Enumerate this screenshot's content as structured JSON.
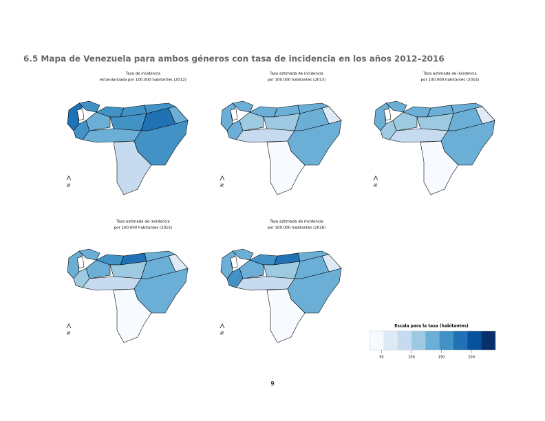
{
  "section_title": "6.5 Mapa de Venezuela para ambos géneros con tasa de incidencia en los años 2012–2016",
  "maps": [
    {
      "title_line1": "Tasa de incidencia",
      "title_line2": "estandarizada por 100.000 habitantes (2012)",
      "north": "N"
    },
    {
      "title_line1": "Tasa estimada de incidencia",
      "title_line2": "por 100.000 habitantes (2013)",
      "north": "N"
    },
    {
      "title_line1": "Tasa estimada de incidencia",
      "title_line2": "por 100.000 habitantes (2014)",
      "north": "N"
    },
    {
      "title_line1": "Tasa estimada de incidencia",
      "title_line2": "por 100.000 habitantes (2015)",
      "north": "N"
    },
    {
      "title_line1": "Tasa estimada de incidencia",
      "title_line2": "por 100.000 habitantes (2016)",
      "north": "N"
    }
  ],
  "legend": {
    "title": "Escala para la tasa (habitantes)",
    "lim": [
      30,
      240
    ],
    "ticks": [
      50,
      100,
      150,
      200
    ],
    "colors": [
      "#f7fbff",
      "#deebf7",
      "#c6dbef",
      "#9ecae1",
      "#6baed6",
      "#4292c6",
      "#2171b5",
      "#08519c",
      "#08306b"
    ]
  },
  "page_number": "9"
}
